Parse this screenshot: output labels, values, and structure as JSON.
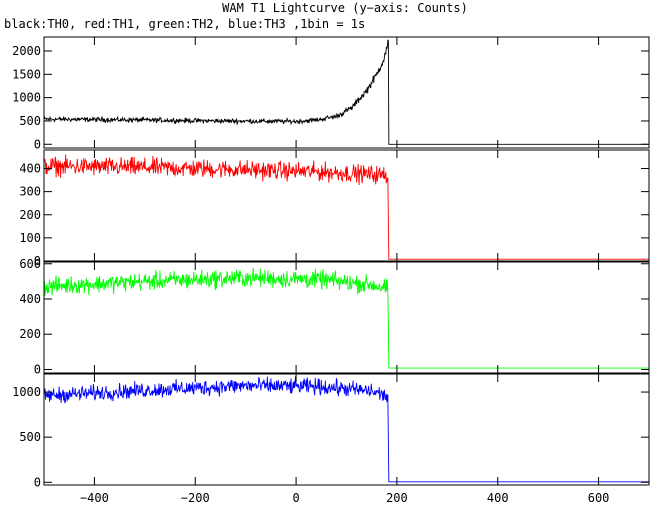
{
  "title": "WAM T1 Lightcurve (y−axis: Counts)",
  "subtitle": "black:TH0, red:TH1, green:TH2, blue:TH3 ,1bin = 1s",
  "chart_data": {
    "type": "line",
    "x_range": [
      -500,
      700
    ],
    "x_ticks": [
      -400,
      -200,
      0,
      200,
      400,
      600
    ],
    "x_tick_labels": [
      "−400",
      "−200",
      "0",
      "200",
      "400",
      "600"
    ],
    "drop_x": 183,
    "panels": [
      {
        "series": "TH0",
        "color": "#000000",
        "ylim": [
          -80,
          2300
        ],
        "y_ticks": [
          0,
          500,
          1000,
          1500,
          2000
        ],
        "y_tick_labels": [
          "0",
          "500",
          "1000",
          "1500",
          "2000"
        ],
        "profile": [
          [
            -500,
            540
          ],
          [
            -300,
            520
          ],
          [
            -150,
            500
          ],
          [
            0,
            490
          ],
          [
            40,
            520
          ],
          [
            80,
            600
          ],
          [
            110,
            780
          ],
          [
            140,
            1150
          ],
          [
            160,
            1500
          ],
          [
            175,
            1850
          ],
          [
            183,
            2200
          ],
          [
            184,
            0
          ],
          [
            700,
            0
          ]
        ],
        "noise": 25
      },
      {
        "series": "TH1",
        "color": "#ff0000",
        "ylim": [
          0,
          480
        ],
        "y_ticks": [
          0,
          100,
          200,
          300,
          400
        ],
        "y_tick_labels": [
          "0",
          "100",
          "200",
          "300",
          "400"
        ],
        "profile": [
          [
            -500,
            410
          ],
          [
            -300,
            405
          ],
          [
            -100,
            395
          ],
          [
            50,
            385
          ],
          [
            150,
            375
          ],
          [
            182,
            370
          ],
          [
            184,
            8
          ],
          [
            700,
            8
          ]
        ],
        "noise": 22
      },
      {
        "series": "TH2",
        "color": "#00ff00",
        "ylim": [
          -20,
          610
        ],
        "y_ticks": [
          0,
          200,
          400,
          600
        ],
        "y_tick_labels": [
          "0",
          "200",
          "400",
          "600"
        ],
        "profile": [
          [
            -500,
            470
          ],
          [
            -300,
            500
          ],
          [
            -100,
            520
          ],
          [
            50,
            510
          ],
          [
            150,
            480
          ],
          [
            182,
            460
          ],
          [
            184,
            8
          ],
          [
            700,
            8
          ]
        ],
        "noise": 25
      },
      {
        "series": "TH3",
        "color": "#0000ff",
        "ylim": [
          -30,
          1200
        ],
        "y_ticks": [
          0,
          500,
          1000
        ],
        "y_tick_labels": [
          "0",
          "500",
          "1000"
        ],
        "profile": [
          [
            -500,
            960
          ],
          [
            -300,
            1020
          ],
          [
            -100,
            1070
          ],
          [
            50,
            1060
          ],
          [
            150,
            1010
          ],
          [
            182,
            950
          ],
          [
            184,
            5
          ],
          [
            700,
            5
          ]
        ],
        "noise": 30
      }
    ]
  }
}
